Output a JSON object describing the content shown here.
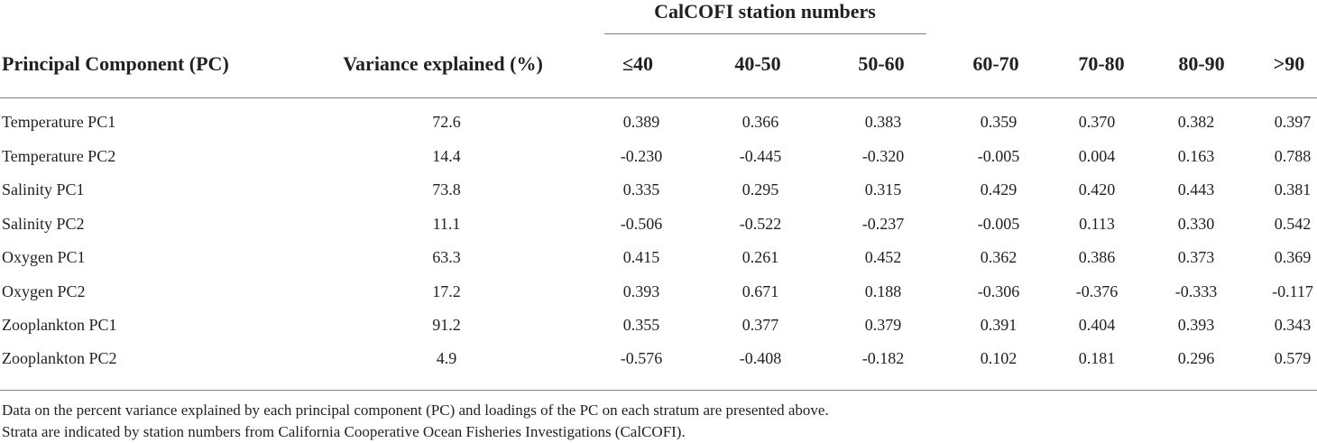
{
  "table": {
    "group_header": "CalCOFI station numbers",
    "columns": [
      "Principal Component (PC)",
      "Variance explained (%)",
      "≤40",
      "40-50",
      "50-60",
      "60-70",
      "70-80",
      "80-90",
      ">90"
    ],
    "rows": [
      [
        "Temperature PC1",
        "72.6",
        "0.389",
        "0.366",
        "0.383",
        "0.359",
        "0.370",
        "0.382",
        "0.397"
      ],
      [
        "Temperature PC2",
        "14.4",
        "-0.230",
        "-0.445",
        "-0.320",
        "-0.005",
        "0.004",
        "0.163",
        "0.788"
      ],
      [
        "Salinity PC1",
        "73.8",
        "0.335",
        "0.295",
        "0.315",
        "0.429",
        "0.420",
        "0.443",
        "0.381"
      ],
      [
        "Salinity PC2",
        "11.1",
        "-0.506",
        "-0.522",
        "-0.237",
        "-0.005",
        "0.113",
        "0.330",
        "0.542"
      ],
      [
        "Oxygen PC1",
        "63.3",
        "0.415",
        "0.261",
        "0.452",
        "0.362",
        "0.386",
        "0.373",
        "0.369"
      ],
      [
        "Oxygen PC2",
        "17.2",
        "0.393",
        "0.671",
        "0.188",
        "-0.306",
        "-0.376",
        "-0.333",
        "-0.117"
      ],
      [
        "Zooplankton PC1",
        "91.2",
        "0.355",
        "0.377",
        "0.379",
        "0.391",
        "0.404",
        "0.393",
        "0.343"
      ],
      [
        "Zooplankton PC2",
        "4.9",
        "-0.576",
        "-0.408",
        "-0.182",
        "0.102",
        "0.181",
        "0.296",
        "0.579"
      ]
    ]
  },
  "footnotes": [
    "Data on the percent variance explained by each principal component (PC) and loadings of the PC on each stratum are presented above.",
    "Strata are indicated by station numbers from California Cooperative Ocean Fisheries Investigations (CalCOFI)."
  ]
}
